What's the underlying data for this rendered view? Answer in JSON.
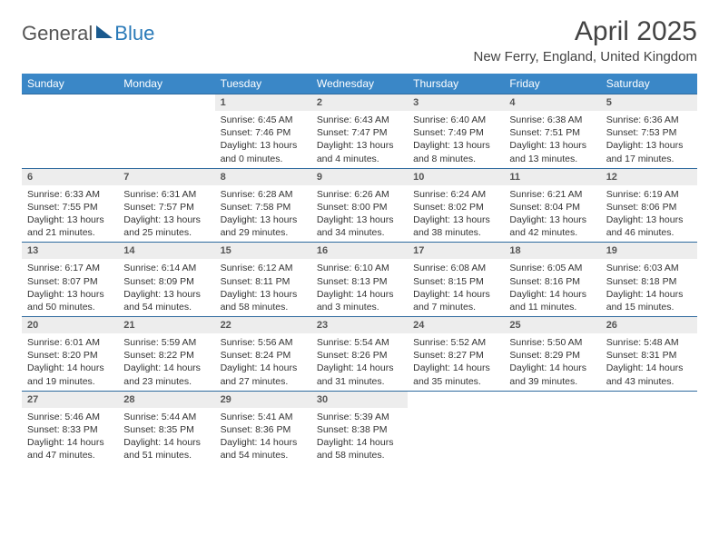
{
  "logo": {
    "part1": "General",
    "part2": "Blue"
  },
  "title": "April 2025",
  "location": "New Ferry, England, United Kingdom",
  "colors": {
    "header_bg": "#3a87c7",
    "header_text": "#ffffff",
    "daynum_bg": "#ededed",
    "border": "#2e6a9e",
    "text": "#333333",
    "logo_gray": "#555555",
    "logo_blue": "#2a7ab8"
  },
  "weekdays": [
    "Sunday",
    "Monday",
    "Tuesday",
    "Wednesday",
    "Thursday",
    "Friday",
    "Saturday"
  ],
  "weeks": [
    [
      null,
      null,
      {
        "n": "1",
        "sr": "Sunrise: 6:45 AM",
        "ss": "Sunset: 7:46 PM",
        "d1": "Daylight: 13 hours",
        "d2": "and 0 minutes."
      },
      {
        "n": "2",
        "sr": "Sunrise: 6:43 AM",
        "ss": "Sunset: 7:47 PM",
        "d1": "Daylight: 13 hours",
        "d2": "and 4 minutes."
      },
      {
        "n": "3",
        "sr": "Sunrise: 6:40 AM",
        "ss": "Sunset: 7:49 PM",
        "d1": "Daylight: 13 hours",
        "d2": "and 8 minutes."
      },
      {
        "n": "4",
        "sr": "Sunrise: 6:38 AM",
        "ss": "Sunset: 7:51 PM",
        "d1": "Daylight: 13 hours",
        "d2": "and 13 minutes."
      },
      {
        "n": "5",
        "sr": "Sunrise: 6:36 AM",
        "ss": "Sunset: 7:53 PM",
        "d1": "Daylight: 13 hours",
        "d2": "and 17 minutes."
      }
    ],
    [
      {
        "n": "6",
        "sr": "Sunrise: 6:33 AM",
        "ss": "Sunset: 7:55 PM",
        "d1": "Daylight: 13 hours",
        "d2": "and 21 minutes."
      },
      {
        "n": "7",
        "sr": "Sunrise: 6:31 AM",
        "ss": "Sunset: 7:57 PM",
        "d1": "Daylight: 13 hours",
        "d2": "and 25 minutes."
      },
      {
        "n": "8",
        "sr": "Sunrise: 6:28 AM",
        "ss": "Sunset: 7:58 PM",
        "d1": "Daylight: 13 hours",
        "d2": "and 29 minutes."
      },
      {
        "n": "9",
        "sr": "Sunrise: 6:26 AM",
        "ss": "Sunset: 8:00 PM",
        "d1": "Daylight: 13 hours",
        "d2": "and 34 minutes."
      },
      {
        "n": "10",
        "sr": "Sunrise: 6:24 AM",
        "ss": "Sunset: 8:02 PM",
        "d1": "Daylight: 13 hours",
        "d2": "and 38 minutes."
      },
      {
        "n": "11",
        "sr": "Sunrise: 6:21 AM",
        "ss": "Sunset: 8:04 PM",
        "d1": "Daylight: 13 hours",
        "d2": "and 42 minutes."
      },
      {
        "n": "12",
        "sr": "Sunrise: 6:19 AM",
        "ss": "Sunset: 8:06 PM",
        "d1": "Daylight: 13 hours",
        "d2": "and 46 minutes."
      }
    ],
    [
      {
        "n": "13",
        "sr": "Sunrise: 6:17 AM",
        "ss": "Sunset: 8:07 PM",
        "d1": "Daylight: 13 hours",
        "d2": "and 50 minutes."
      },
      {
        "n": "14",
        "sr": "Sunrise: 6:14 AM",
        "ss": "Sunset: 8:09 PM",
        "d1": "Daylight: 13 hours",
        "d2": "and 54 minutes."
      },
      {
        "n": "15",
        "sr": "Sunrise: 6:12 AM",
        "ss": "Sunset: 8:11 PM",
        "d1": "Daylight: 13 hours",
        "d2": "and 58 minutes."
      },
      {
        "n": "16",
        "sr": "Sunrise: 6:10 AM",
        "ss": "Sunset: 8:13 PM",
        "d1": "Daylight: 14 hours",
        "d2": "and 3 minutes."
      },
      {
        "n": "17",
        "sr": "Sunrise: 6:08 AM",
        "ss": "Sunset: 8:15 PM",
        "d1": "Daylight: 14 hours",
        "d2": "and 7 minutes."
      },
      {
        "n": "18",
        "sr": "Sunrise: 6:05 AM",
        "ss": "Sunset: 8:16 PM",
        "d1": "Daylight: 14 hours",
        "d2": "and 11 minutes."
      },
      {
        "n": "19",
        "sr": "Sunrise: 6:03 AM",
        "ss": "Sunset: 8:18 PM",
        "d1": "Daylight: 14 hours",
        "d2": "and 15 minutes."
      }
    ],
    [
      {
        "n": "20",
        "sr": "Sunrise: 6:01 AM",
        "ss": "Sunset: 8:20 PM",
        "d1": "Daylight: 14 hours",
        "d2": "and 19 minutes."
      },
      {
        "n": "21",
        "sr": "Sunrise: 5:59 AM",
        "ss": "Sunset: 8:22 PM",
        "d1": "Daylight: 14 hours",
        "d2": "and 23 minutes."
      },
      {
        "n": "22",
        "sr": "Sunrise: 5:56 AM",
        "ss": "Sunset: 8:24 PM",
        "d1": "Daylight: 14 hours",
        "d2": "and 27 minutes."
      },
      {
        "n": "23",
        "sr": "Sunrise: 5:54 AM",
        "ss": "Sunset: 8:26 PM",
        "d1": "Daylight: 14 hours",
        "d2": "and 31 minutes."
      },
      {
        "n": "24",
        "sr": "Sunrise: 5:52 AM",
        "ss": "Sunset: 8:27 PM",
        "d1": "Daylight: 14 hours",
        "d2": "and 35 minutes."
      },
      {
        "n": "25",
        "sr": "Sunrise: 5:50 AM",
        "ss": "Sunset: 8:29 PM",
        "d1": "Daylight: 14 hours",
        "d2": "and 39 minutes."
      },
      {
        "n": "26",
        "sr": "Sunrise: 5:48 AM",
        "ss": "Sunset: 8:31 PM",
        "d1": "Daylight: 14 hours",
        "d2": "and 43 minutes."
      }
    ],
    [
      {
        "n": "27",
        "sr": "Sunrise: 5:46 AM",
        "ss": "Sunset: 8:33 PM",
        "d1": "Daylight: 14 hours",
        "d2": "and 47 minutes."
      },
      {
        "n": "28",
        "sr": "Sunrise: 5:44 AM",
        "ss": "Sunset: 8:35 PM",
        "d1": "Daylight: 14 hours",
        "d2": "and 51 minutes."
      },
      {
        "n": "29",
        "sr": "Sunrise: 5:41 AM",
        "ss": "Sunset: 8:36 PM",
        "d1": "Daylight: 14 hours",
        "d2": "and 54 minutes."
      },
      {
        "n": "30",
        "sr": "Sunrise: 5:39 AM",
        "ss": "Sunset: 8:38 PM",
        "d1": "Daylight: 14 hours",
        "d2": "and 58 minutes."
      },
      null,
      null,
      null
    ]
  ]
}
